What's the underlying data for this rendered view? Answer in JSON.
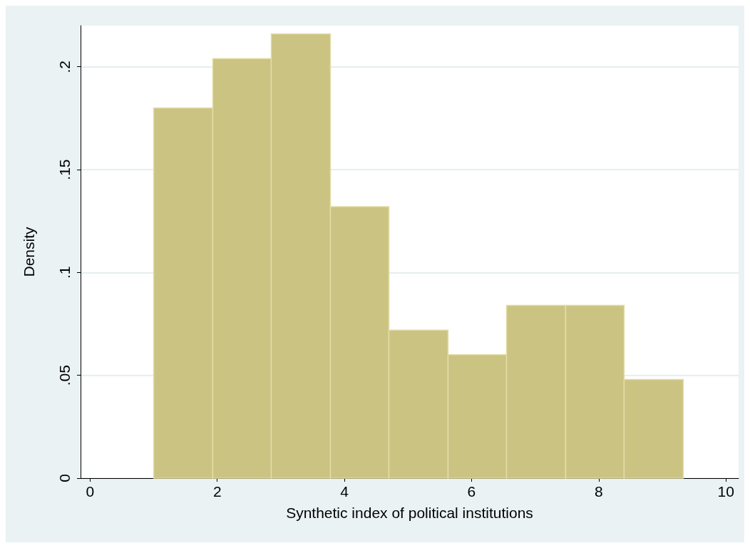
{
  "chart_data": {
    "type": "histogram",
    "xlabel": "Synthetic index of political institutions",
    "ylabel": "Density",
    "bins": [
      1,
      1.93,
      2.85,
      3.78,
      4.7,
      5.63,
      6.55,
      7.48,
      8.4,
      9.33
    ],
    "values": [
      0.18,
      0.204,
      0.216,
      0.132,
      0.072,
      0.06,
      0.084,
      0.084,
      0.048
    ],
    "color": "#cbc382",
    "xlim": [
      -0.15,
      10.2
    ],
    "xticks": [
      0,
      2,
      4,
      6,
      8,
      10
    ],
    "ylim": [
      0,
      0.22
    ],
    "yticks": [
      {
        "value": 0,
        "label": "0"
      },
      {
        "value": 0.05,
        "label": ".05"
      },
      {
        "value": 0.1,
        "label": ".1"
      },
      {
        "value": 0.15,
        "label": ".15"
      },
      {
        "value": 0.2,
        "label": ".2"
      }
    ],
    "grid": "y"
  }
}
